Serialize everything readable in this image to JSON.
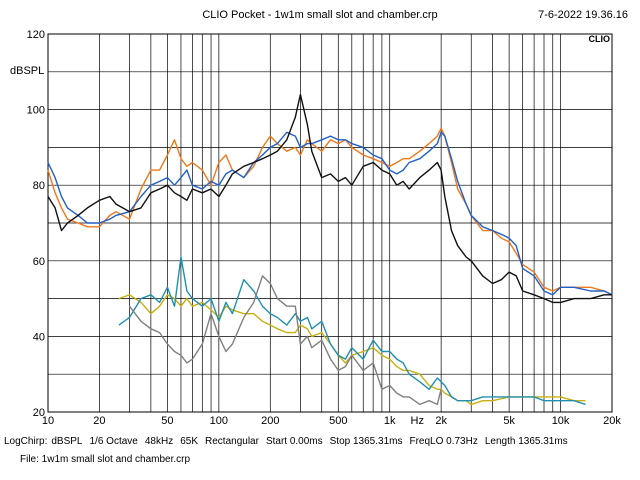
{
  "header": {
    "title": "CLIO Pocket - 1w1m small slot and chamber.crp",
    "datetime": "7-6-2022 19.36.16",
    "logo": "CLIO"
  },
  "settings_bar": {
    "items": [
      "LogChirp:",
      "dBSPL",
      "1/6 Octave",
      "48kHz",
      "65K",
      "Rectangular",
      "Start 0.00ms",
      "Stop 1365.31ms",
      "FreqLO 0.73Hz",
      "Length 1365.31ms"
    ]
  },
  "file_label": "File: 1w1m small slot and chamber.crp",
  "chart_data": {
    "type": "line",
    "title": "",
    "xlabel": "Hz",
    "ylabel": "dBSPL",
    "x_scale": "log",
    "xlim": [
      10,
      20000
    ],
    "ylim": [
      20,
      120
    ],
    "grid": true,
    "x_tick_labels": [
      {
        "value": 10,
        "label": "10"
      },
      {
        "value": 20,
        "label": "20"
      },
      {
        "value": 50,
        "label": "50"
      },
      {
        "value": 100,
        "label": "100"
      },
      {
        "value": 200,
        "label": "200"
      },
      {
        "value": 500,
        "label": "500"
      },
      {
        "value": 1000,
        "label": "1k"
      },
      {
        "value": 2000,
        "label": "2k"
      },
      {
        "value": 5000,
        "label": "5k"
      },
      {
        "value": 10000,
        "label": "10k"
      },
      {
        "value": 20000,
        "label": "20k"
      }
    ],
    "y_tick_labels": [
      {
        "value": 120,
        "label": "120"
      },
      {
        "value": 100,
        "label": "100"
      },
      {
        "value": 80,
        "label": "80"
      },
      {
        "value": 60,
        "label": "60"
      },
      {
        "value": 40,
        "label": "40"
      },
      {
        "value": 20,
        "label": "20"
      }
    ],
    "series": [
      {
        "color": "#f07818",
        "x": [
          10,
          11,
          12,
          13,
          15,
          17,
          20,
          23,
          25,
          30,
          35,
          40,
          45,
          50,
          55,
          60,
          65,
          70,
          80,
          90,
          100,
          110,
          120,
          140,
          160,
          180,
          200,
          220,
          250,
          280,
          300,
          330,
          350,
          400,
          450,
          500,
          550,
          600,
          700,
          800,
          900,
          1000,
          1100,
          1200,
          1300,
          1500,
          1700,
          1900,
          2000,
          2100,
          2300,
          2500,
          2800,
          3000,
          3500,
          4000,
          4500,
          5000,
          5500,
          6000,
          7000,
          8000,
          9000,
          10000,
          12000,
          15000,
          18000,
          20000
        ],
        "y": [
          84,
          78,
          74,
          71,
          70,
          69,
          69,
          72,
          73,
          71,
          79,
          84,
          84,
          88,
          92,
          87,
          85,
          86,
          84,
          80,
          86,
          88,
          84,
          82,
          85,
          90,
          93,
          91,
          89,
          90,
          88,
          92,
          91,
          89,
          92,
          91,
          92,
          90,
          88,
          87,
          86,
          85,
          86,
          87,
          87,
          89,
          91,
          93,
          95,
          93,
          86,
          79,
          75,
          72,
          68,
          68,
          66,
          65,
          62,
          59,
          57,
          53,
          52,
          53,
          53,
          53,
          52,
          51
        ]
      },
      {
        "color": "#2060c8",
        "x": [
          10,
          11,
          12,
          13,
          15,
          17,
          20,
          23,
          25,
          30,
          35,
          40,
          45,
          50,
          55,
          60,
          65,
          70,
          80,
          90,
          100,
          110,
          120,
          140,
          160,
          180,
          200,
          220,
          250,
          280,
          300,
          330,
          350,
          400,
          450,
          500,
          550,
          600,
          700,
          800,
          900,
          1000,
          1100,
          1200,
          1300,
          1500,
          1700,
          1900,
          2000,
          2100,
          2300,
          2500,
          2800,
          3000,
          3500,
          4000,
          4500,
          5000,
          5500,
          6000,
          7000,
          8000,
          9000,
          10000,
          12000,
          15000,
          18000,
          20000
        ],
        "y": [
          86,
          82,
          77,
          74,
          72,
          70,
          70,
          71,
          72,
          73,
          77,
          80,
          81,
          82,
          80,
          82,
          84,
          80,
          79,
          81,
          80,
          83,
          84,
          82,
          86,
          88,
          90,
          91,
          94,
          93,
          90,
          91,
          91,
          92,
          93,
          92,
          92,
          91,
          90,
          88,
          87,
          84,
          83,
          84,
          86,
          87,
          89,
          91,
          94,
          93,
          87,
          81,
          75,
          72,
          69,
          68,
          67,
          66,
          64,
          58,
          56,
          52,
          51,
          53,
          53,
          52,
          52,
          51
        ]
      },
      {
        "color": "#101010",
        "x": [
          10,
          11,
          12,
          13,
          15,
          17,
          20,
          23,
          25,
          30,
          35,
          40,
          45,
          50,
          55,
          60,
          65,
          70,
          80,
          90,
          100,
          110,
          120,
          140,
          160,
          180,
          200,
          220,
          250,
          280,
          300,
          330,
          350,
          400,
          450,
          500,
          550,
          600,
          700,
          800,
          900,
          1000,
          1100,
          1200,
          1300,
          1500,
          1700,
          1900,
          2000,
          2100,
          2300,
          2500,
          2800,
          3000,
          3500,
          4000,
          4500,
          5000,
          5500,
          6000,
          7000,
          8000,
          9000,
          10000,
          12000,
          15000,
          18000,
          20000
        ],
        "y": [
          77,
          74,
          68,
          70,
          72,
          74,
          76,
          77,
          75,
          73,
          74,
          78,
          79,
          80,
          78,
          77,
          76,
          79,
          78,
          79,
          77,
          80,
          83,
          85,
          86,
          87,
          88,
          89,
          92,
          98,
          104,
          96,
          89,
          82,
          83,
          81,
          82,
          80,
          85,
          86,
          84,
          83,
          80,
          81,
          79,
          82,
          84,
          86,
          84,
          77,
          68,
          64,
          61,
          60,
          56,
          54,
          55,
          57,
          56,
          52,
          51,
          50,
          49,
          49,
          50,
          50,
          51,
          51
        ]
      },
      {
        "color": "#c8b010",
        "x": [
          26,
          30,
          35,
          40,
          45,
          50,
          55,
          60,
          65,
          70,
          80,
          90,
          100,
          110,
          120,
          140,
          160,
          180,
          200,
          220,
          250,
          280,
          300,
          330,
          350,
          400,
          450,
          500,
          550,
          600,
          700,
          800,
          900,
          1000,
          1100,
          1200,
          1300,
          1500,
          1700,
          1900,
          2000,
          2100,
          2300,
          2500,
          2800,
          3000,
          3500,
          4000,
          5000,
          6000,
          7000,
          8000,
          10000,
          12000,
          14000
        ],
        "y": [
          50,
          51,
          49,
          46,
          48,
          51,
          50,
          48,
          50,
          48,
          49,
          47,
          45,
          48,
          47,
          46,
          46,
          44,
          43,
          42,
          41,
          41,
          43,
          42,
          40,
          41,
          38,
          35,
          33,
          35,
          36,
          37,
          35,
          34,
          32,
          31,
          31,
          30,
          27,
          26,
          26,
          25,
          24,
          23,
          23,
          22,
          23,
          23,
          24,
          24,
          24,
          24,
          24,
          23,
          23
        ]
      },
      {
        "color": "#2090b0",
        "x": [
          26,
          30,
          35,
          40,
          45,
          50,
          55,
          60,
          65,
          70,
          80,
          90,
          100,
          110,
          120,
          140,
          160,
          180,
          200,
          220,
          250,
          280,
          300,
          330,
          350,
          400,
          450,
          500,
          550,
          600,
          700,
          800,
          900,
          1000,
          1100,
          1200,
          1300,
          1500,
          1700,
          1900,
          2000,
          2100,
          2300,
          2500,
          2800,
          3000,
          3500,
          4000,
          5000,
          6000,
          7000,
          8000,
          10000,
          12000,
          14000
        ],
        "y": [
          43,
          45,
          50,
          51,
          49,
          53,
          48,
          61,
          52,
          50,
          48,
          50,
          44,
          49,
          46,
          55,
          52,
          48,
          46,
          45,
          43,
          46,
          44,
          45,
          42,
          44,
          38,
          35,
          34,
          37,
          34,
          39,
          36,
          36,
          34,
          33,
          30,
          28,
          26,
          29,
          28,
          27,
          24,
          23,
          23,
          23,
          24,
          24,
          24,
          24,
          24,
          23,
          23,
          23,
          22
        ]
      },
      {
        "color": "#808080",
        "x": [
          30,
          35,
          40,
          45,
          50,
          55,
          60,
          65,
          70,
          80,
          90,
          100,
          110,
          120,
          140,
          160,
          180,
          200,
          220,
          250,
          280,
          300,
          330,
          350,
          400,
          450,
          500,
          550,
          600,
          700,
          800,
          900,
          1000,
          1100,
          1200,
          1300,
          1500,
          1700,
          1900,
          2000
        ],
        "y": [
          48,
          44,
          42,
          41,
          38,
          36,
          35,
          33,
          34,
          38,
          46,
          40,
          36,
          38,
          45,
          49,
          56,
          54,
          50,
          48,
          48,
          38,
          40,
          37,
          39,
          34,
          31,
          32,
          35,
          31,
          33,
          26,
          27,
          25,
          24,
          24,
          22,
          23,
          22,
          26
        ]
      }
    ]
  }
}
